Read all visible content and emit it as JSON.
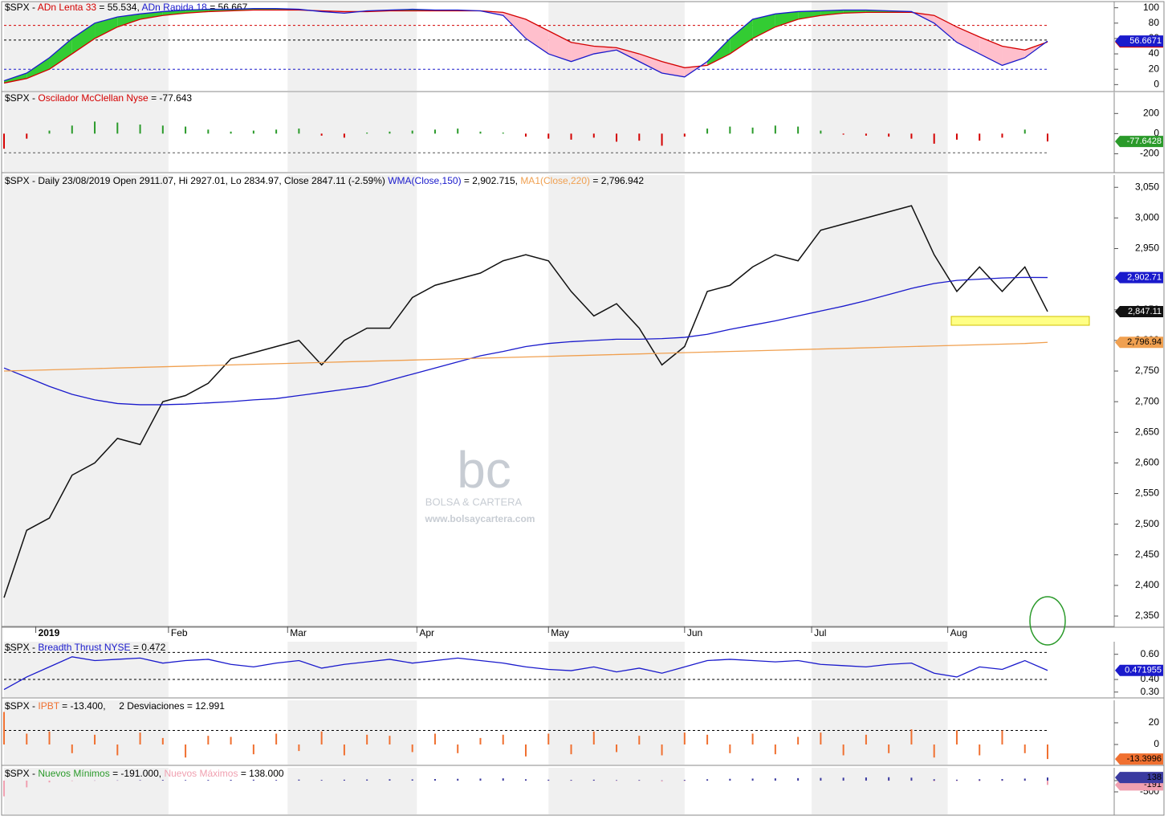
{
  "chart_data": [
    {
      "type": "line",
      "header": [
        {
          "text": "$SPX - ",
          "color": "#000000"
        },
        {
          "text": "ADn Lenta 33",
          "color": "#d40000"
        },
        {
          "text": " = 55.534, ",
          "color": "#000000"
        },
        {
          "text": "ADn Rapida 18",
          "color": "#1a1acc"
        },
        {
          "text": " = 56.667",
          "color": "#000000"
        }
      ],
      "ylim": [
        -8,
        108
      ],
      "yticks": [
        100,
        80,
        60,
        40,
        20,
        0
      ],
      "hlines": [
        {
          "value": 77,
          "color": "#d40000"
        },
        {
          "value": 58,
          "color": "#000000"
        },
        {
          "value": 20,
          "color": "#1a1acc"
        }
      ],
      "fill_between": [
        1,
        0
      ],
      "fill_colors": [
        "#33cc33",
        "#ffbfcc"
      ],
      "series": [
        {
          "name": "ADn Lenta 33",
          "color": "#d40000",
          "label_text": "#ffffff",
          "values": [
            2,
            8,
            20,
            40,
            60,
            75,
            85,
            90,
            93,
            95,
            96,
            97,
            97,
            97,
            96,
            95,
            95,
            96,
            96,
            96,
            96,
            96,
            94,
            85,
            70,
            55,
            50,
            48,
            40,
            30,
            22,
            25,
            40,
            60,
            75,
            85,
            90,
            93,
            94,
            94,
            94,
            90,
            75,
            62,
            50,
            45,
            55.534
          ]
        },
        {
          "name": "ADn Rapida 18",
          "color": "#1a1acc",
          "label_text": "#ffffff",
          "values": [
            5,
            15,
            35,
            60,
            80,
            88,
            92,
            95,
            97,
            98,
            98,
            99,
            99,
            98,
            95,
            93,
            96,
            97,
            98,
            97,
            97,
            96,
            90,
            60,
            40,
            30,
            40,
            45,
            30,
            15,
            10,
            30,
            60,
            85,
            92,
            95,
            96,
            97,
            97,
            96,
            95,
            80,
            55,
            40,
            25,
            35,
            56.6671
          ]
        }
      ]
    },
    {
      "type": "bar",
      "header": [
        {
          "text": "$SPX - ",
          "color": "#000000"
        },
        {
          "text": "Oscilador McClellan Nyse",
          "color": "#d40000"
        },
        {
          "text": " = -77.643",
          "color": "#000000"
        }
      ],
      "ylim": [
        -380,
        410
      ],
      "yticks": [
        200,
        0,
        -200
      ],
      "hlines": [
        {
          "value": -190,
          "color": "#555555"
        }
      ],
      "series": [
        {
          "name": "Oscilador McClellan Nyse",
          "color": "#2a9a2a",
          "negative_color": "#d40000",
          "label_text": "#ffffff",
          "values": [
            -150,
            -50,
            30,
            80,
            120,
            110,
            90,
            80,
            70,
            40,
            20,
            30,
            40,
            50,
            -20,
            -40,
            10,
            20,
            30,
            40,
            50,
            20,
            10,
            -30,
            -50,
            -60,
            -40,
            -80,
            -70,
            -120,
            -30,
            50,
            70,
            60,
            80,
            70,
            30,
            -10,
            -20,
            -30,
            -50,
            -100,
            -60,
            -70,
            -40,
            40,
            -77.6428
          ]
        }
      ]
    },
    {
      "type": "line",
      "header": [
        {
          "text": "$SPX - Daily 23/08/2019 Open 2911.07, Hi 2927.01, Lo 2834.97, Close 2847.11 (-2.59%) ",
          "color": "#000000"
        },
        {
          "text": "WMA(Close,150)",
          "color": "#1a1acc"
        },
        {
          "text": " = 2,902.715, ",
          "color": "#000000"
        },
        {
          "text": "MA1(Close,220)",
          "color": "#f0a050"
        },
        {
          "text": " = 2,796.942",
          "color": "#000000"
        }
      ],
      "ylim": [
        2333,
        3070
      ],
      "yticks": [
        {
          "value": 3050,
          "label": "3,050"
        },
        {
          "value": 3000,
          "label": "3,000"
        },
        {
          "value": 2950,
          "label": "2,950"
        },
        {
          "value": 2900,
          "label": "2,900"
        },
        {
          "value": 2850,
          "label": "2,850"
        },
        {
          "value": 2800,
          "label": "2,800"
        },
        {
          "value": 2750,
          "label": "2,750"
        },
        {
          "value": 2700,
          "label": "2,700"
        },
        {
          "value": 2650,
          "label": "2,650"
        },
        {
          "value": 2600,
          "label": "2,600"
        },
        {
          "value": 2550,
          "label": "2,550"
        },
        {
          "value": 2500,
          "label": "2,500"
        },
        {
          "value": 2450,
          "label": "2,450"
        },
        {
          "value": 2400,
          "label": "2,400"
        },
        {
          "value": 2350,
          "label": "2,350"
        }
      ],
      "xlim": [
        0,
        46
      ],
      "xticks": [
        {
          "value": 1.4,
          "label": "2019"
        },
        {
          "value": 7.25,
          "label": "Feb"
        },
        {
          "value": 12.5,
          "label": "Mar"
        },
        {
          "value": 18.2,
          "label": "Apr"
        },
        {
          "value": 24,
          "label": "May"
        },
        {
          "value": 30,
          "label": "Jun"
        },
        {
          "value": 35.6,
          "label": "Jul"
        },
        {
          "value": 41.6,
          "label": "Aug"
        }
      ],
      "series": [
        {
          "name": "Close",
          "color": "#111111",
          "label_text": "#ffffff",
          "values": [
            2380,
            2490,
            2510,
            2580,
            2600,
            2640,
            2630,
            2700,
            2710,
            2730,
            2770,
            2780,
            2790,
            2800,
            2760,
            2800,
            2820,
            2820,
            2870,
            2890,
            2900,
            2910,
            2930,
            2940,
            2930,
            2880,
            2840,
            2860,
            2820,
            2760,
            2790,
            2880,
            2890,
            2920,
            2940,
            2930,
            2980,
            2990,
            3000,
            3010,
            3020,
            2940,
            2880,
            2920,
            2880,
            2920,
            2847.11
          ],
          "value_labels": {
            "46": "2,847.11"
          }
        },
        {
          "name": "WMA(Close,150)",
          "color": "#1a1acc",
          "label_text": "#ffffff",
          "values": [
            2755,
            2740,
            2725,
            2712,
            2703,
            2697,
            2695,
            2695,
            2696,
            2698,
            2700,
            2703,
            2705,
            2710,
            2715,
            2720,
            2725,
            2735,
            2745,
            2755,
            2765,
            2775,
            2782,
            2790,
            2795,
            2798,
            2800,
            2802,
            2802,
            2803,
            2805,
            2810,
            2818,
            2825,
            2832,
            2840,
            2848,
            2856,
            2865,
            2875,
            2885,
            2893,
            2898,
            2900,
            2902,
            2903,
            2902.715
          ],
          "value_labels": {
            "46": "2,902.71"
          }
        },
        {
          "name": "MA1(Close,220)",
          "color": "#f0a050",
          "label_text": "#000000",
          "values": [
            2750,
            2751,
            2752,
            2753,
            2754,
            2755,
            2756,
            2757,
            2758,
            2759,
            2760,
            2761,
            2762,
            2763,
            2764,
            2765,
            2766,
            2767,
            2768,
            2769,
            2770,
            2771,
            2772,
            2773,
            2774,
            2775,
            2776,
            2777,
            2778,
            2779,
            2780,
            2781,
            2782,
            2783,
            2784,
            2785,
            2786,
            2787,
            2788,
            2789,
            2790,
            2791,
            2792,
            2793,
            2794,
            2795,
            2796.942
          ],
          "value_labels": {
            "46": "2,796.94"
          }
        }
      ]
    },
    {
      "type": "line",
      "header": [
        {
          "text": "$SPX - ",
          "color": "#000000"
        },
        {
          "text": "Breadth Thrust NYSE",
          "color": "#1a1acc"
        },
        {
          "text": " = 0.472",
          "color": "#000000"
        }
      ],
      "ylim": [
        0.26,
        0.7
      ],
      "yticks": [
        {
          "value": 0.6,
          "label": "0.60"
        },
        {
          "value": 0.4,
          "label": "0.40"
        },
        {
          "value": 0.3,
          "label": "0.30"
        }
      ],
      "hlines": [
        {
          "value": 0.615,
          "color": "#000000"
        },
        {
          "value": 0.4,
          "color": "#000000"
        }
      ],
      "series": [
        {
          "name": "Breadth Thrust NYSE",
          "color": "#1a1acc",
          "label_text": "#ffffff",
          "values": [
            0.32,
            0.42,
            0.5,
            0.58,
            0.55,
            0.56,
            0.57,
            0.53,
            0.55,
            0.56,
            0.52,
            0.5,
            0.53,
            0.55,
            0.49,
            0.52,
            0.54,
            0.56,
            0.53,
            0.55,
            0.57,
            0.55,
            0.53,
            0.5,
            0.48,
            0.47,
            0.5,
            0.46,
            0.49,
            0.45,
            0.5,
            0.55,
            0.56,
            0.55,
            0.54,
            0.55,
            0.52,
            0.51,
            0.5,
            0.52,
            0.53,
            0.45,
            0.42,
            0.5,
            0.48,
            0.55,
            0.471955
          ]
        }
      ]
    },
    {
      "type": "bar",
      "header": [
        {
          "text": "$SPX - ",
          "color": "#000000"
        },
        {
          "text": "IPBT",
          "color": "#f07030"
        },
        {
          "text": " = -13.400,     2 Desviaciones = 12.991",
          "color": "#000000"
        }
      ],
      "ylim": [
        -18.5,
        40.7
      ],
      "yticks": [
        20,
        0
      ],
      "hlines": [
        {
          "value": 12.991,
          "color": "#000000"
        }
      ],
      "series": [
        {
          "name": "IPBT",
          "color": "#f07030",
          "label_text": "#000000",
          "values": [
            30,
            10,
            12,
            -8,
            9,
            -10,
            11,
            6,
            -12,
            8,
            7,
            -9,
            10,
            -6,
            12,
            -10,
            9,
            8,
            -7,
            10,
            -8,
            6,
            9,
            -11,
            10,
            -9,
            12,
            -7,
            8,
            -10,
            11,
            9,
            -8,
            10,
            -9,
            7,
            11,
            -10,
            9,
            -8,
            14,
            -12,
            13,
            -10,
            13,
            -8,
            -13.3996
          ]
        }
      ]
    },
    {
      "type": "bar",
      "header": [
        {
          "text": "$SPX - ",
          "color": "#000000"
        },
        {
          "text": "Nuevos Mínimos",
          "color": "#2a9a2a"
        },
        {
          "text": " = -191.000, ",
          "color": "#000000"
        },
        {
          "text": "Nuevos Máximos",
          "color": "#f0a0b0"
        },
        {
          "text": " = 138.000",
          "color": "#000000"
        }
      ],
      "ylim": [
        -1500,
        570
      ],
      "yticks": [
        0,
        -500
      ],
      "series": [
        {
          "name": "Nuevos Mínimos",
          "color": "#f0a0b0",
          "label_text": "#000000",
          "values": [
            -700,
            -300,
            -80,
            -20,
            -10,
            -8,
            -5,
            -5,
            -4,
            -3,
            -3,
            -2,
            -4,
            -3,
            -6,
            -5,
            -3,
            -2,
            -2,
            -3,
            -2,
            -3,
            -4,
            -8,
            -10,
            -12,
            -8,
            -15,
            -12,
            -40,
            -20,
            -5,
            -4,
            -3,
            -3,
            -4,
            -5,
            -6,
            -5,
            -8,
            -10,
            -30,
            -20,
            -25,
            -15,
            -10,
            -191
          ]
        },
        {
          "name": "Nuevos Máximos",
          "color": "#3a3aa0",
          "label_text": "#000000",
          "values": [
            0,
            0,
            0,
            2,
            5,
            10,
            20,
            30,
            25,
            30,
            35,
            40,
            30,
            45,
            30,
            40,
            50,
            60,
            55,
            70,
            80,
            90,
            100,
            60,
            40,
            30,
            40,
            20,
            25,
            10,
            30,
            60,
            80,
            90,
            100,
            110,
            120,
            130,
            140,
            150,
            130,
            60,
            40,
            60,
            70,
            90,
            138
          ]
        }
      ]
    }
  ],
  "watermark": {
    "logo": "bc",
    "name": "BOLSA & CARTERA",
    "url": "www.bolsaycartera.com"
  }
}
